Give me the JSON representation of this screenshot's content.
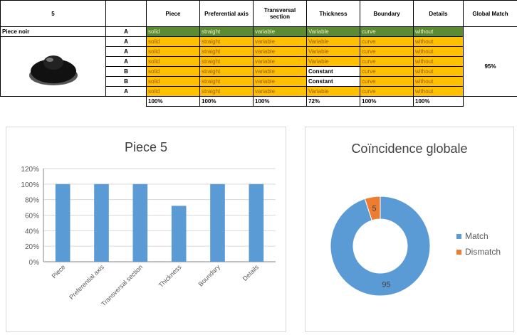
{
  "table": {
    "corner": "5",
    "columns": [
      "Piece",
      "Preferential axis",
      "Transversal section",
      "Thickness",
      "Boundary",
      "Details",
      "Global Match"
    ],
    "reference_color": "#5b8c32",
    "row_color": "#ffc000",
    "mismatch_color": "#ffffff",
    "rows": [
      {
        "name": "Piece noir",
        "cells": [
          "A",
          "solid",
          "straight",
          "variable",
          "Variable",
          "curve",
          "without"
        ]
      },
      {
        "cells": [
          "A",
          "solid",
          "straight",
          "variable",
          "Variable",
          "curve",
          "without"
        ]
      },
      {
        "cells": [
          "A",
          "solid",
          "straight",
          "variable",
          "Variable",
          "curve",
          "without"
        ]
      },
      {
        "cells": [
          "A",
          "solid",
          "straight",
          "variable",
          "Variable",
          "curve",
          "without"
        ]
      },
      {
        "cells": [
          "B",
          "solid",
          "straight",
          "variable",
          "Constant",
          "curve",
          "without"
        ]
      },
      {
        "cells": [
          "B",
          "solid",
          "straight",
          "variable",
          "Constant",
          "curve",
          "without"
        ]
      },
      {
        "cells": [
          "A",
          "solid",
          "straight",
          "variable",
          "Variable",
          "curve",
          "without"
        ]
      }
    ],
    "global_match": "95%",
    "totals": [
      "100%",
      "100%",
      "100%",
      "72%",
      "100%",
      "100%"
    ]
  },
  "chart_data": [
    {
      "type": "bar",
      "title": "Piece 5",
      "categories": [
        "Piece",
        "Preferential axis",
        "Transversal section",
        "Thickness",
        "Boundary",
        "Details"
      ],
      "values": [
        100,
        100,
        100,
        72,
        100,
        100
      ],
      "color": "#5b9bd5",
      "ylim": [
        0,
        120
      ],
      "yticks": [
        {
          "value": 0,
          "label": "0%"
        },
        {
          "value": 20,
          "label": "20%"
        },
        {
          "value": 40,
          "label": "40%"
        },
        {
          "value": 60,
          "label": "60%"
        },
        {
          "value": 80,
          "label": "80%"
        },
        {
          "value": 100,
          "label": "100%"
        },
        {
          "value": 120,
          "label": "120%"
        }
      ],
      "grid": true
    },
    {
      "type": "donut",
      "title": "Coïncidence globale",
      "categories": [
        "Match",
        "Dismatch"
      ],
      "values": [
        95,
        5
      ],
      "colors": [
        "#5b9bd5",
        "#ed7d31"
      ],
      "legend": "right"
    }
  ]
}
